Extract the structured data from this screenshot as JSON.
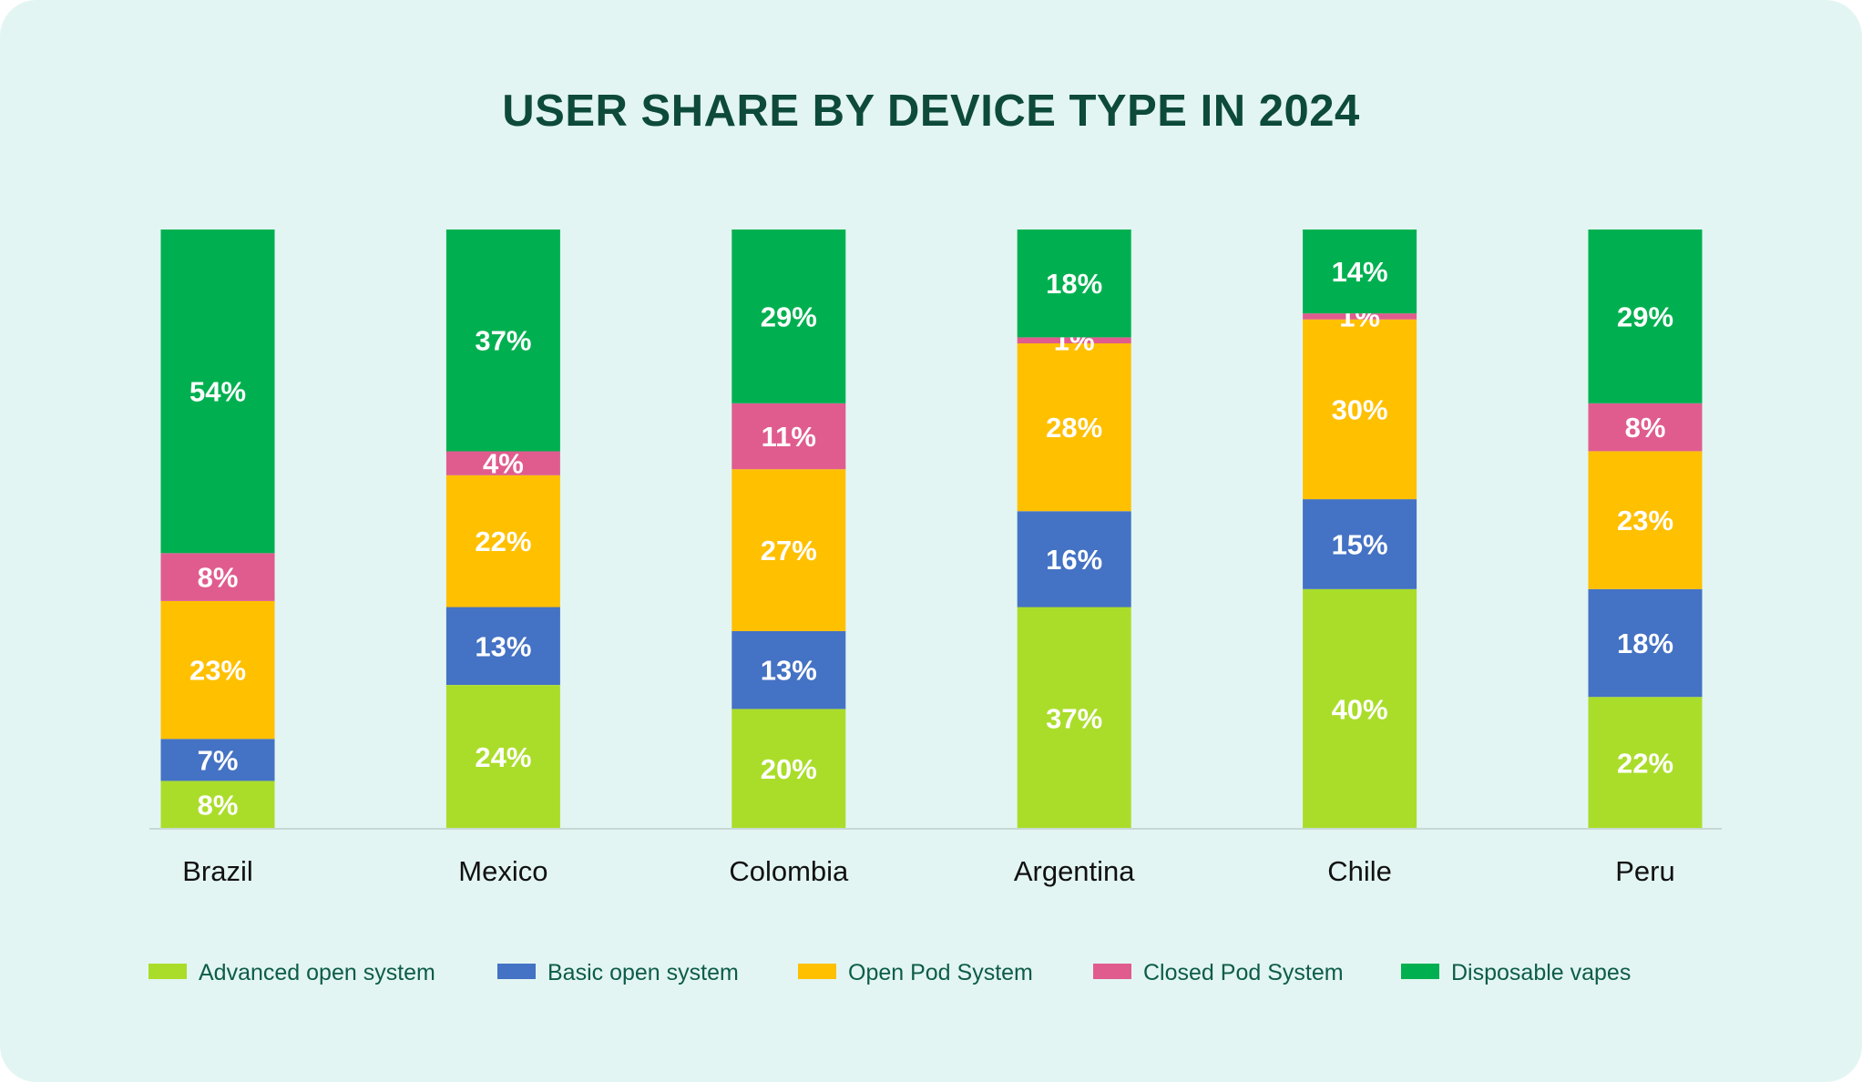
{
  "colors": {
    "background": "#e2f5f2",
    "title": "#0d4a3a",
    "legend_text": "#0d5c47",
    "axis_line": "#c9d8d5",
    "segment_text": "#ffffff",
    "category_text": "#111111"
  },
  "chart_data": {
    "type": "bar",
    "stacked": true,
    "title": "USER SHARE BY DEVICE TYPE IN 2024",
    "xlabel": "",
    "ylabel": "",
    "ylim": [
      0,
      100
    ],
    "grid": false,
    "legend_position": "bottom",
    "categories": [
      "Brazil",
      "Mexico",
      "Colombia",
      "Argentina",
      "Chile",
      "Peru"
    ],
    "series": [
      {
        "name": "Advanced open system",
        "color": "#aadd2a",
        "values": [
          8,
          24,
          20,
          37,
          40,
          22
        ],
        "labels": [
          "8%",
          "24%",
          "20%",
          "37%",
          "40%",
          "22%"
        ]
      },
      {
        "name": "Basic open system",
        "color": "#4472c4",
        "values": [
          7,
          13,
          13,
          16,
          15,
          18
        ],
        "labels": [
          "7%",
          "13%",
          "13%",
          "16%",
          "15%",
          "18%"
        ]
      },
      {
        "name": "Open Pod System",
        "color": "#ffc000",
        "values": [
          23,
          22,
          27,
          28,
          30,
          23
        ],
        "labels": [
          "23%",
          "22%",
          "27%",
          "28%",
          "30%",
          "23%"
        ]
      },
      {
        "name": "Closed Pod System",
        "color": "#e05c8e",
        "values": [
          8,
          4,
          11,
          1,
          1,
          8
        ],
        "labels": [
          "8%",
          "4%",
          "11%",
          "1%",
          "1%",
          "8%"
        ]
      },
      {
        "name": "Disposable vapes",
        "color": "#00b050",
        "values": [
          54,
          37,
          29,
          18,
          14,
          29
        ],
        "labels": [
          "54%",
          "37%",
          "29%",
          "18%",
          "14%",
          "29%"
        ]
      }
    ]
  }
}
